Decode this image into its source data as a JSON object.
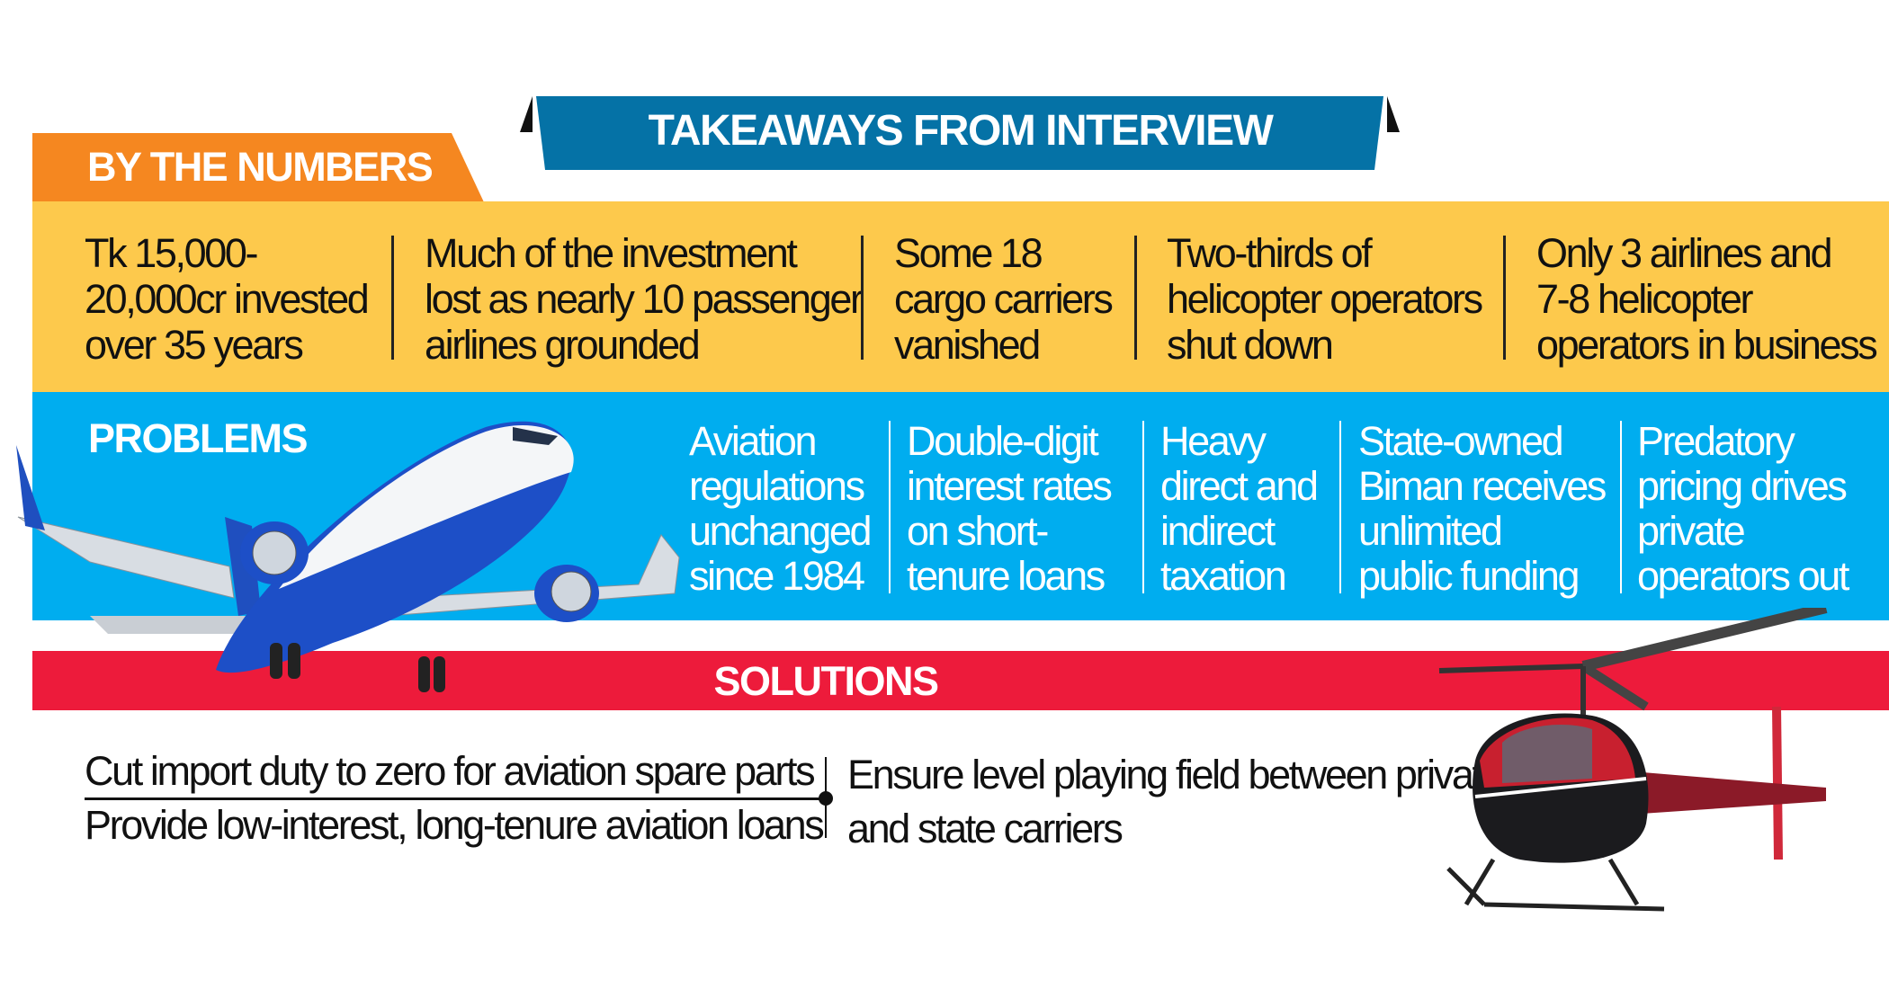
{
  "header": {
    "title": "TAKEAWAYS FROM INTERVIEW"
  },
  "by_the_numbers": {
    "label": "BY THE NUMBERS",
    "items": [
      "Tk 15,000-\n20,000cr invested\nover 35 years",
      "Much of the investment\nlost as nearly 10 passenger\nairlines grounded",
      "Some 18\ncargo carriers\nvanished",
      "Two-thirds of\nhelicopter operators\nshut down",
      "Only 3 airlines and\n7-8 helicopter\noperators in business"
    ]
  },
  "problems": {
    "label": "PROBLEMS",
    "items": [
      "Aviation\nregulations\nunchanged\nsince 1984",
      "Double-digit\ninterest rates\non short-\ntenure loans",
      "Heavy\ndirect and\nindirect\ntaxation",
      "State-owned\nBiman receives\nunlimited\npublic funding",
      "Predatory\npricing drives\nprivate\noperators out"
    ]
  },
  "solutions": {
    "label": "SOLUTIONS",
    "items": [
      "Cut import duty to zero for aviation spare parts",
      "Provide low-interest, long-tenure aviation loans",
      "Ensure level playing field between private\nand state carriers"
    ]
  },
  "colors": {
    "header_blue": "#0572a6",
    "orange": "#f58720",
    "yellow": "#fdc94c",
    "sky": "#00adef",
    "red": "#ed1b3b"
  },
  "images": {
    "airplane": "airplane-illustration",
    "helicopter": "helicopter-illustration"
  }
}
